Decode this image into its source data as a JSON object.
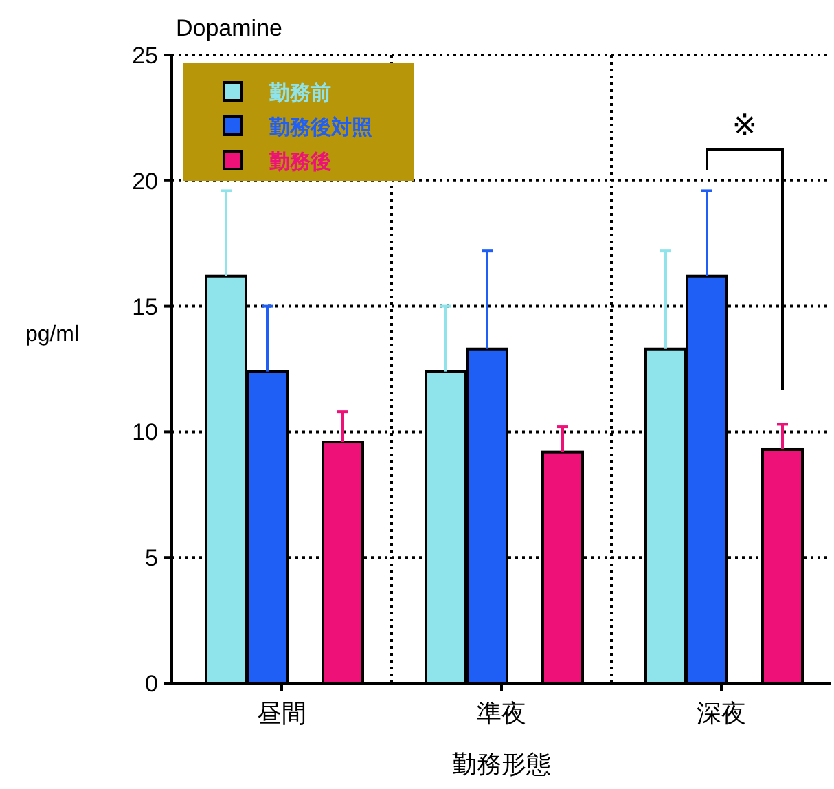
{
  "chart_data": {
    "type": "bar",
    "title": "Dopamine",
    "xlabel": "勤務形態",
    "ylabel": "pg/ml",
    "categories": [
      "昼間",
      "準夜",
      "深夜"
    ],
    "series": [
      {
        "name": "勤務前",
        "color": "#8fe3ea",
        "values": [
          16.2,
          12.4,
          13.3
        ],
        "errors": [
          [
            16.2,
            19.6
          ],
          [
            12.4,
            15.0
          ],
          [
            13.3,
            17.2
          ]
        ]
      },
      {
        "name": "勤務後対照",
        "color": "#1f5ff5",
        "values": [
          12.4,
          13.3,
          16.2
        ],
        "errors": [
          [
            12.4,
            15.0
          ],
          [
            13.3,
            17.2
          ],
          [
            16.2,
            19.6
          ]
        ]
      },
      {
        "name": "勤務後",
        "color": "#ee1177",
        "values": [
          9.6,
          9.2,
          9.3
        ],
        "errors": [
          [
            9.6,
            10.8
          ],
          [
            9.2,
            10.2
          ],
          [
            9.3,
            10.3
          ]
        ]
      }
    ],
    "ylim": [
      0,
      25
    ],
    "yticks": [
      0,
      5,
      10,
      15,
      20,
      25
    ],
    "grid": true,
    "legend": "top left",
    "annotations": [
      "※"
    ]
  }
}
